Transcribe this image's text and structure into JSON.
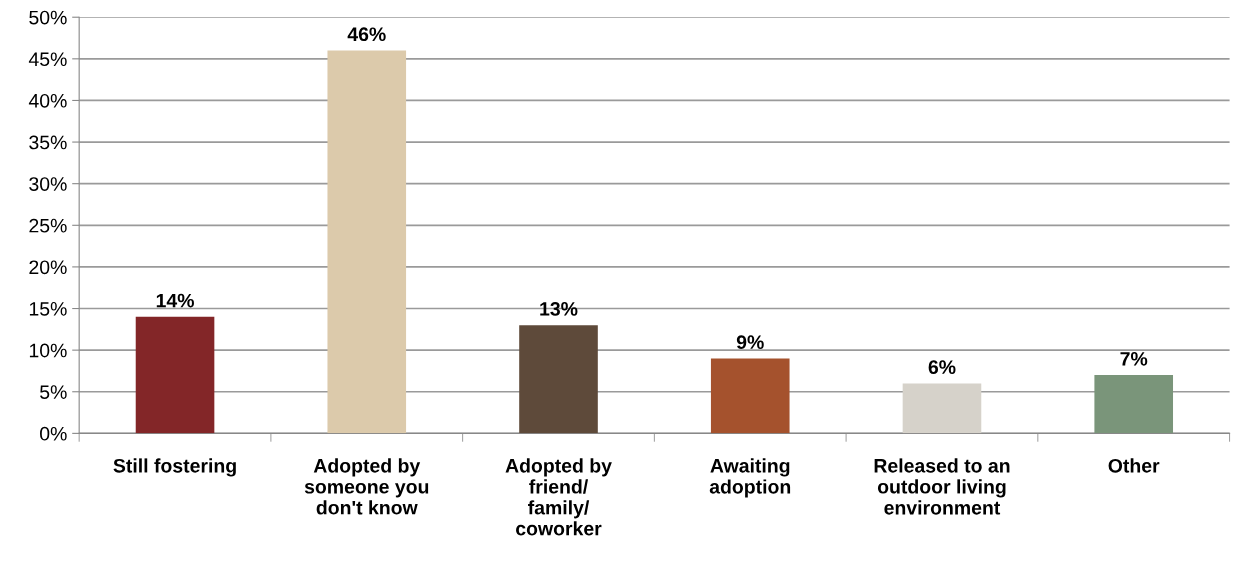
{
  "chart_data": {
    "type": "bar",
    "categories": [
      "Still fostering",
      "Adopted by\nsomeone you\ndon't know",
      "Adopted by\nfriend/\nfamily/\ncoworker",
      "Awaiting\nadoption",
      "Released to an\noutdoor living\nenvironment",
      "Other"
    ],
    "values": [
      14,
      46,
      13,
      9,
      6,
      7
    ],
    "colors": [
      "#832628",
      "#dccaab",
      "#5e4a3a",
      "#a5522d",
      "#d6d2ca",
      "#7a957a"
    ],
    "value_labels": [
      "14%",
      "46%",
      "13%",
      "9%",
      "6%",
      "7%"
    ],
    "ylim": [
      0,
      50
    ],
    "yticks": [
      {
        "value": 0,
        "label": "0%"
      },
      {
        "value": 5,
        "label": "5%"
      },
      {
        "value": 10,
        "label": "10%"
      },
      {
        "value": 15,
        "label": "15%"
      },
      {
        "value": 20,
        "label": "20%"
      },
      {
        "value": 25,
        "label": "25%"
      },
      {
        "value": 30,
        "label": "30%"
      },
      {
        "value": 35,
        "label": "35%"
      },
      {
        "value": 40,
        "label": "40%"
      },
      {
        "value": 45,
        "label": "45%"
      },
      {
        "value": 50,
        "label": "50%"
      }
    ],
    "grid": "y"
  }
}
